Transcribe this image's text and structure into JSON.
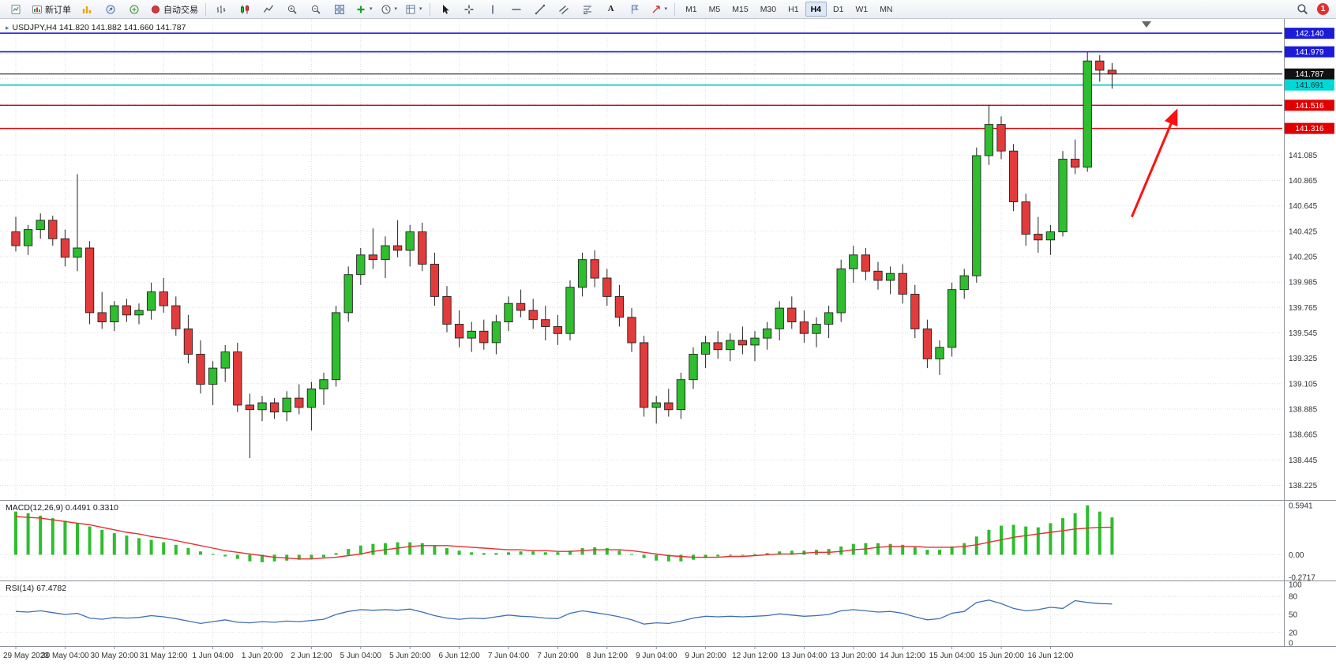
{
  "toolbar": {
    "new_order_label": "新订单",
    "autotrade_label": "自动交易",
    "timeframes": [
      "M1",
      "M5",
      "M15",
      "M30",
      "H1",
      "H4",
      "D1",
      "W1",
      "MN"
    ],
    "active_timeframe": "H4",
    "notification_count": "1",
    "glyphs": {
      "caret": "▾",
      "text_tool": "A",
      "one_click": "▸"
    }
  },
  "chart_data": {
    "main": {
      "type": "candlestick",
      "symbol": "USDJPY",
      "timeframe": "H4",
      "title": "USDJPY,H4 141.820 141.882 141.660 141.787",
      "ohlc_readout": {
        "open": 141.82,
        "high": 141.882,
        "low": 141.66,
        "close": 141.787
      },
      "ylim": [
        138.16,
        142.25
      ],
      "price_ticks": [
        141.085,
        140.865,
        140.645,
        140.425,
        140.205,
        139.985,
        139.765,
        139.545,
        139.325,
        139.105,
        138.885,
        138.665,
        138.445,
        138.225
      ],
      "hlines": [
        {
          "price": 142.14,
          "label": "142.140",
          "color": "#1C1CD8",
          "bg": "#1C1CD8",
          "fg": "#FFFFFF",
          "width": 1.6
        },
        {
          "price": 141.979,
          "label": "141.979",
          "color": "#1C1CD8",
          "bg": "#1C1CD8",
          "fg": "#FFFFFF",
          "width": 1.6
        },
        {
          "price": 141.787,
          "label": "141.787",
          "color": "#222222",
          "bg": "#111111",
          "fg": "#FFFFFF",
          "width": 1.2
        },
        {
          "price": 141.691,
          "label": "141.691",
          "color": "#00C8C8",
          "bg": "#00D8D8",
          "fg": "#003330",
          "width": 1.6
        },
        {
          "price": 141.516,
          "label": "141.516",
          "color": "#E00000",
          "bg": "#E00000",
          "fg": "#FFFFFF",
          "width": 1.4
        },
        {
          "price": 141.316,
          "label": "141.316",
          "color": "#E00000",
          "bg": "#E00000",
          "fg": "#FFFFFF",
          "width": 1.4
        }
      ],
      "candles": [
        [
          140.42,
          140.55,
          140.25,
          140.3
        ],
        [
          140.3,
          140.48,
          140.22,
          140.44
        ],
        [
          140.44,
          140.58,
          140.36,
          140.52
        ],
        [
          140.52,
          140.56,
          140.3,
          140.36
        ],
        [
          140.36,
          140.44,
          140.12,
          140.2
        ],
        [
          140.2,
          140.92,
          140.08,
          140.28
        ],
        [
          140.28,
          140.34,
          139.62,
          139.72
        ],
        [
          139.72,
          139.9,
          139.58,
          139.64
        ],
        [
          139.64,
          139.82,
          139.56,
          139.78
        ],
        [
          139.78,
          139.84,
          139.64,
          139.7
        ],
        [
          139.7,
          139.8,
          139.62,
          139.74
        ],
        [
          139.74,
          139.98,
          139.66,
          139.9
        ],
        [
          139.9,
          140.02,
          139.72,
          139.78
        ],
        [
          139.78,
          139.86,
          139.52,
          139.58
        ],
        [
          139.58,
          139.7,
          139.28,
          139.36
        ],
        [
          139.36,
          139.48,
          139.02,
          139.1
        ],
        [
          139.1,
          139.3,
          138.92,
          139.24
        ],
        [
          139.24,
          139.44,
          139.12,
          139.38
        ],
        [
          139.38,
          139.46,
          138.86,
          138.92
        ],
        [
          138.92,
          139.02,
          138.46,
          138.88
        ],
        [
          138.88,
          139.0,
          138.78,
          138.94
        ],
        [
          138.94,
          138.98,
          138.8,
          138.86
        ],
        [
          138.86,
          139.04,
          138.78,
          138.98
        ],
        [
          138.98,
          139.1,
          138.84,
          138.9
        ],
        [
          138.9,
          139.12,
          138.7,
          139.06
        ],
        [
          139.06,
          139.2,
          138.92,
          139.14
        ],
        [
          139.14,
          139.78,
          139.08,
          139.72
        ],
        [
          139.72,
          140.12,
          139.64,
          140.05
        ],
        [
          140.05,
          140.28,
          139.96,
          140.22
        ],
        [
          140.22,
          140.45,
          140.1,
          140.18
        ],
        [
          140.18,
          140.38,
          140.02,
          140.3
        ],
        [
          140.3,
          140.52,
          140.2,
          140.26
        ],
        [
          140.26,
          140.48,
          140.12,
          140.42
        ],
        [
          140.42,
          140.5,
          140.08,
          140.14
        ],
        [
          140.14,
          140.24,
          139.78,
          139.86
        ],
        [
          139.86,
          139.95,
          139.55,
          139.62
        ],
        [
          139.62,
          139.74,
          139.42,
          139.5
        ],
        [
          139.5,
          139.64,
          139.38,
          139.56
        ],
        [
          139.56,
          139.66,
          139.4,
          139.46
        ],
        [
          139.46,
          139.7,
          139.36,
          139.64
        ],
        [
          139.64,
          139.86,
          139.56,
          139.8
        ],
        [
          139.8,
          139.92,
          139.68,
          139.74
        ],
        [
          139.74,
          139.84,
          139.58,
          139.66
        ],
        [
          139.66,
          139.78,
          139.48,
          139.6
        ],
        [
          139.6,
          139.7,
          139.44,
          139.54
        ],
        [
          139.54,
          140.0,
          139.48,
          139.94
        ],
        [
          139.94,
          140.24,
          139.86,
          140.18
        ],
        [
          140.18,
          140.26,
          139.94,
          140.02
        ],
        [
          140.02,
          140.1,
          139.78,
          139.86
        ],
        [
          139.86,
          139.96,
          139.6,
          139.68
        ],
        [
          139.68,
          139.76,
          139.38,
          139.46
        ],
        [
          139.46,
          139.52,
          138.82,
          138.9
        ],
        [
          138.9,
          139.0,
          138.76,
          138.94
        ],
        [
          138.94,
          139.06,
          138.82,
          138.88
        ],
        [
          138.88,
          139.2,
          138.8,
          139.14
        ],
        [
          139.14,
          139.42,
          139.06,
          139.36
        ],
        [
          139.36,
          139.52,
          139.24,
          139.46
        ],
        [
          139.46,
          139.56,
          139.32,
          139.4
        ],
        [
          139.4,
          139.54,
          139.3,
          139.48
        ],
        [
          139.48,
          139.6,
          139.36,
          139.44
        ],
        [
          139.44,
          139.56,
          139.3,
          139.5
        ],
        [
          139.5,
          139.64,
          139.4,
          139.58
        ],
        [
          139.58,
          139.82,
          139.48,
          139.76
        ],
        [
          139.76,
          139.86,
          139.58,
          139.64
        ],
        [
          139.64,
          139.74,
          139.46,
          139.54
        ],
        [
          139.54,
          139.68,
          139.42,
          139.62
        ],
        [
          139.62,
          139.78,
          139.5,
          139.72
        ],
        [
          139.72,
          140.18,
          139.64,
          140.1
        ],
        [
          140.1,
          140.3,
          139.98,
          140.22
        ],
        [
          140.22,
          140.28,
          140.0,
          140.08
        ],
        [
          140.08,
          140.16,
          139.92,
          140.0
        ],
        [
          140.0,
          140.12,
          139.88,
          140.06
        ],
        [
          140.06,
          140.14,
          139.8,
          139.88
        ],
        [
          139.88,
          139.96,
          139.5,
          139.58
        ],
        [
          139.58,
          139.66,
          139.24,
          139.32
        ],
        [
          139.32,
          139.48,
          139.18,
          139.42
        ],
        [
          139.42,
          139.98,
          139.34,
          139.92
        ],
        [
          139.92,
          140.1,
          139.84,
          140.04
        ],
        [
          140.04,
          141.15,
          139.98,
          141.08
        ],
        [
          141.08,
          141.52,
          141.0,
          141.35
        ],
        [
          141.35,
          141.42,
          141.05,
          141.12
        ],
        [
          141.12,
          141.18,
          140.6,
          140.68
        ],
        [
          140.68,
          140.75,
          140.3,
          140.4
        ],
        [
          140.4,
          140.55,
          140.24,
          140.35
        ],
        [
          140.35,
          140.48,
          140.22,
          140.42
        ],
        [
          140.42,
          141.12,
          140.38,
          141.05
        ],
        [
          141.05,
          141.22,
          140.92,
          140.98
        ],
        [
          140.98,
          141.98,
          140.94,
          141.9
        ],
        [
          141.9,
          141.95,
          141.72,
          141.82
        ],
        [
          141.82,
          141.882,
          141.66,
          141.787
        ]
      ],
      "time_labels": [
        "29 May 2023",
        "30 May 04:00",
        "30 May 20:00",
        "31 May 12:00",
        "1 Jun 04:00",
        "1 Jun 20:00",
        "2 Jun 12:00",
        "5 Jun 04:00",
        "5 Jun 20:00",
        "6 Jun 12:00",
        "7 Jun 04:00",
        "7 Jun 20:00",
        "8 Jun 12:00",
        "9 Jun 04:00",
        "9 Jun 20:00",
        "12 Jun 12:00",
        "13 Jun 04:00",
        "13 Jun 20:00",
        "14 Jun 12:00",
        "15 Jun 04:00",
        "15 Jun 20:00",
        "16 Jun 12:00"
      ],
      "candles_per_label": 4,
      "arrow": {
        "from": {
          "bar": 90.6,
          "price": 140.55
        },
        "to": {
          "bar": 94.2,
          "price": 141.46
        },
        "color": "#FF1010"
      },
      "colors": {
        "up": "#2EBE2E",
        "down": "#E23B3B",
        "outline": "#222222"
      }
    },
    "macd": {
      "type": "bar",
      "title": "MACD(12,26,9) 0.4491 0.3310",
      "values": [
        0.52,
        0.5,
        0.47,
        0.44,
        0.41,
        0.38,
        0.34,
        0.3,
        0.26,
        0.23,
        0.2,
        0.18,
        0.15,
        0.12,
        0.08,
        0.04,
        0.01,
        -0.02,
        -0.05,
        -0.08,
        -0.09,
        -0.08,
        -0.07,
        -0.06,
        -0.05,
        -0.03,
        0.02,
        0.07,
        0.11,
        0.13,
        0.14,
        0.15,
        0.15,
        0.14,
        0.11,
        0.08,
        0.05,
        0.03,
        0.02,
        0.02,
        0.03,
        0.04,
        0.04,
        0.03,
        0.03,
        0.05,
        0.08,
        0.09,
        0.08,
        0.05,
        0.01,
        -0.04,
        -0.07,
        -0.08,
        -0.08,
        -0.06,
        -0.04,
        -0.02,
        -0.01,
        0.0,
        0.01,
        0.02,
        0.04,
        0.05,
        0.05,
        0.06,
        0.07,
        0.1,
        0.13,
        0.14,
        0.14,
        0.13,
        0.12,
        0.09,
        0.06,
        0.06,
        0.1,
        0.14,
        0.22,
        0.3,
        0.35,
        0.36,
        0.34,
        0.33,
        0.38,
        0.44,
        0.5,
        0.5941,
        0.52,
        0.4491
      ],
      "signal": [
        0.46,
        0.45,
        0.44,
        0.42,
        0.4,
        0.38,
        0.36,
        0.33,
        0.3,
        0.27,
        0.25,
        0.22,
        0.2,
        0.17,
        0.14,
        0.11,
        0.08,
        0.05,
        0.03,
        0.01,
        -0.01,
        -0.03,
        -0.04,
        -0.05,
        -0.05,
        -0.04,
        -0.03,
        -0.01,
        0.01,
        0.04,
        0.06,
        0.08,
        0.1,
        0.11,
        0.11,
        0.11,
        0.1,
        0.09,
        0.08,
        0.07,
        0.06,
        0.06,
        0.05,
        0.05,
        0.04,
        0.04,
        0.05,
        0.06,
        0.06,
        0.06,
        0.05,
        0.03,
        0.01,
        -0.01,
        -0.02,
        -0.03,
        -0.03,
        -0.03,
        -0.02,
        -0.02,
        -0.01,
        0.0,
        0.01,
        0.01,
        0.02,
        0.03,
        0.03,
        0.04,
        0.06,
        0.07,
        0.09,
        0.1,
        0.1,
        0.1,
        0.09,
        0.09,
        0.09,
        0.1,
        0.12,
        0.15,
        0.18,
        0.21,
        0.23,
        0.25,
        0.27,
        0.29,
        0.31,
        0.32,
        0.33,
        0.331
      ],
      "levels": [
        0.5941,
        0,
        -0.2717
      ],
      "scale_labels": [
        "0.5941",
        "0.00",
        "-0.2717"
      ],
      "ylim": [
        -0.3,
        0.65
      ],
      "bar_color": "#2EBE2E",
      "signal_color": "#E53030"
    },
    "rsi": {
      "type": "line",
      "title": "RSI(14) 67.4782",
      "values": [
        55,
        54,
        56,
        53,
        50,
        52,
        44,
        42,
        45,
        44,
        45,
        48,
        46,
        43,
        39,
        35,
        38,
        41,
        37,
        36,
        38,
        37,
        39,
        38,
        40,
        42,
        50,
        55,
        58,
        57,
        58,
        57,
        59,
        54,
        48,
        44,
        42,
        44,
        43,
        46,
        49,
        47,
        46,
        44,
        43,
        52,
        56,
        53,
        50,
        46,
        41,
        34,
        36,
        35,
        39,
        44,
        47,
        46,
        47,
        46,
        47,
        48,
        51,
        49,
        47,
        48,
        50,
        56,
        58,
        56,
        54,
        55,
        52,
        46,
        41,
        43,
        52,
        55,
        70,
        74,
        68,
        60,
        56,
        58,
        62,
        60,
        73,
        70,
        68,
        67.4782
      ],
      "levels": [
        80,
        50,
        20
      ],
      "scale_values": [
        100,
        80,
        50,
        20,
        0
      ],
      "scale_labels": [
        "100",
        "80",
        "50",
        "20",
        "0"
      ],
      "ylim": [
        0,
        100
      ],
      "line_color": "#3F6FB5"
    }
  }
}
